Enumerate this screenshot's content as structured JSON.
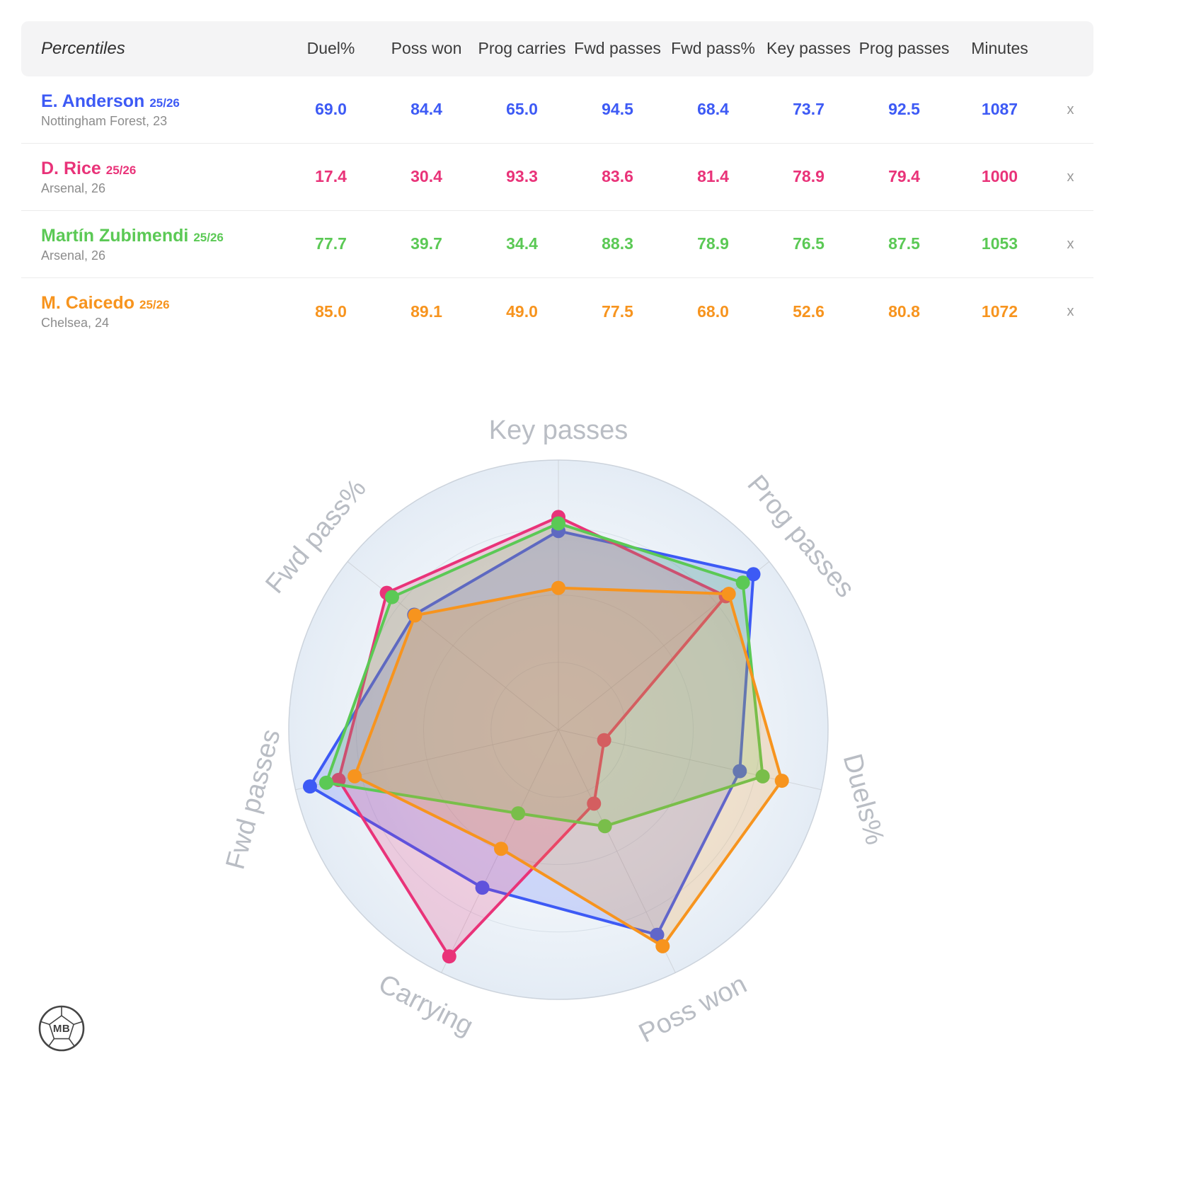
{
  "table": {
    "title": "Percentiles",
    "columns": [
      "Duel%",
      "Poss won",
      "Prog carries",
      "Fwd passes",
      "Fwd pass%",
      "Key passes",
      "Prog passes",
      "Minutes"
    ],
    "rows": [
      {
        "player": "E. Anderson",
        "season": "25/26",
        "meta": "Nottingham Forest, 23",
        "color": "#3d5af5",
        "values": [
          "69.0",
          "84.4",
          "65.0",
          "94.5",
          "68.4",
          "73.7",
          "92.5",
          "1087"
        ],
        "remove_label": "x"
      },
      {
        "player": "D. Rice",
        "season": "25/26",
        "meta": "Arsenal, 26",
        "color": "#e93379",
        "values": [
          "17.4",
          "30.4",
          "93.3",
          "83.6",
          "81.4",
          "78.9",
          "79.4",
          "1000"
        ],
        "remove_label": "x"
      },
      {
        "player": "Martín Zubimendi",
        "season": "25/26",
        "meta": "Arsenal, 26",
        "color": "#5bc955",
        "values": [
          "77.7",
          "39.7",
          "34.4",
          "88.3",
          "78.9",
          "76.5",
          "87.5",
          "1053"
        ],
        "remove_label": "x"
      },
      {
        "player": "M. Caicedo",
        "season": "25/26",
        "meta": "Chelsea, 24",
        "color": "#f7941e",
        "values": [
          "85.0",
          "89.1",
          "49.0",
          "77.5",
          "68.0",
          "52.6",
          "80.8",
          "1072"
        ],
        "remove_label": "x"
      }
    ]
  },
  "chart_data": {
    "type": "radar",
    "axes": [
      "Key passes",
      "Prog passes",
      "Duels%",
      "Poss won",
      "Carrying",
      "Fwd passes",
      "Fwd pass%"
    ],
    "scale_min": 0,
    "scale_max": 100,
    "legend_position": "none",
    "series": [
      {
        "name": "E. Anderson 25/26",
        "color": "#3d5af5",
        "values": [
          73.7,
          92.5,
          69.0,
          84.4,
          65.0,
          94.5,
          68.4
        ]
      },
      {
        "name": "D. Rice 25/26",
        "color": "#e93379",
        "values": [
          78.9,
          79.4,
          17.4,
          30.4,
          93.3,
          83.6,
          81.4
        ]
      },
      {
        "name": "Martín Zubimendi 25/26",
        "color": "#5bc955",
        "values": [
          76.5,
          87.5,
          77.7,
          39.7,
          34.4,
          88.3,
          78.9
        ]
      },
      {
        "name": "M. Caicedo 25/26",
        "color": "#f7941e",
        "values": [
          52.6,
          80.8,
          85.0,
          89.1,
          49.0,
          77.5,
          68.0
        ]
      }
    ]
  },
  "logo": {
    "text": "MB"
  }
}
